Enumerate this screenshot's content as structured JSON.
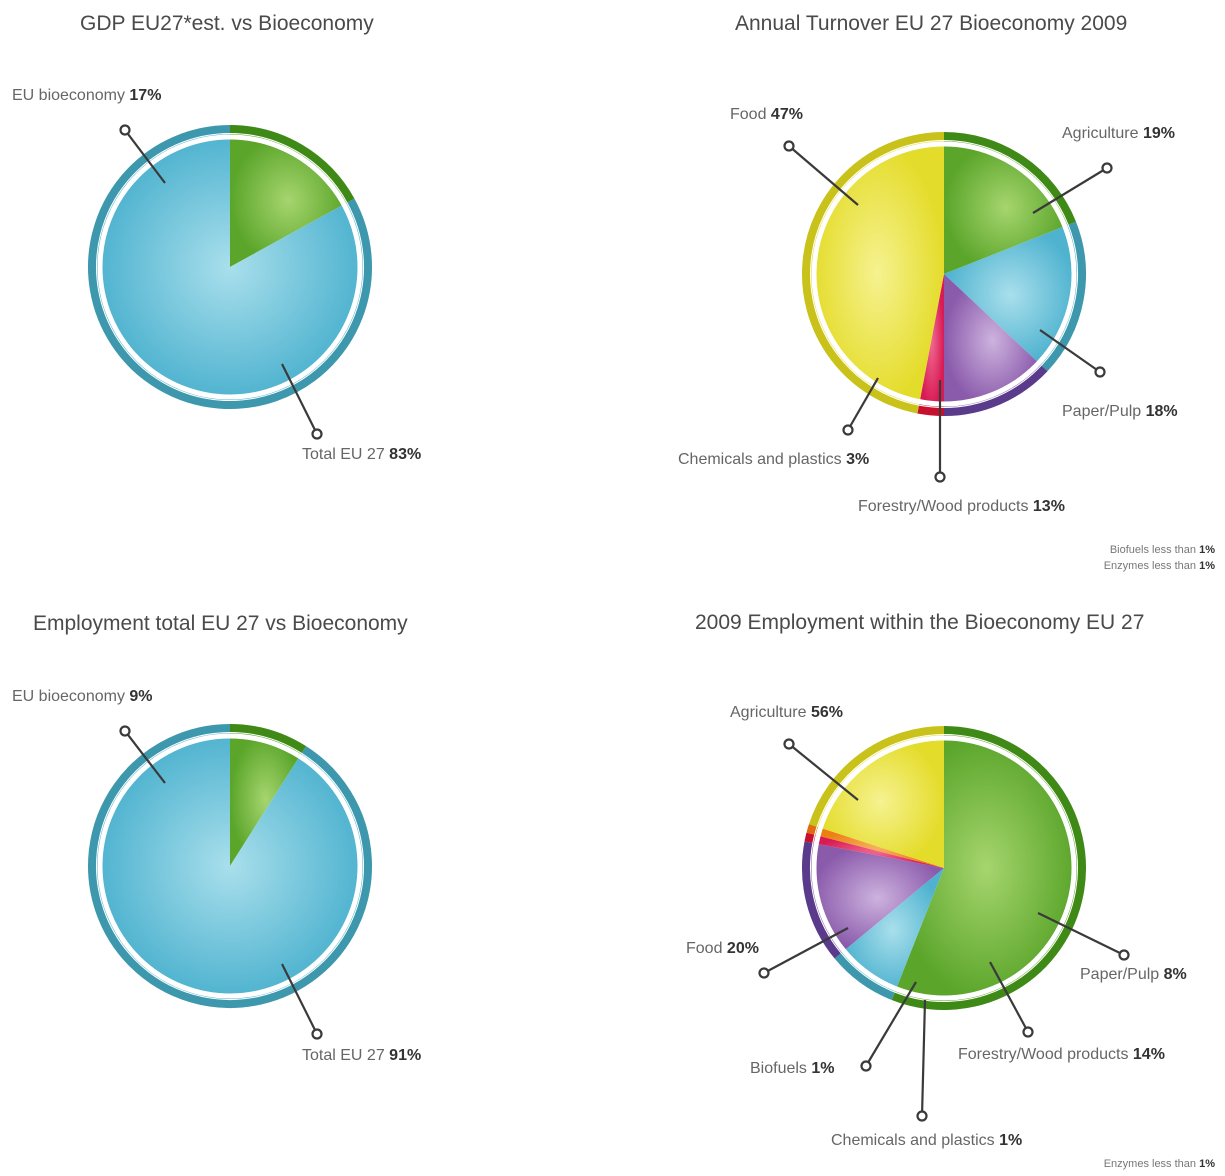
{
  "chart_data": [
    {
      "type": "pie",
      "title": "GDP EU27*est. vs Bioeconomy",
      "slices": [
        {
          "label": "EU bioeconomy",
          "value": 17,
          "value_label": "17%",
          "color": "#6fb53a"
        },
        {
          "label": "Total EU 27",
          "value": 83,
          "value_label": "83%",
          "color": "#6cc3da"
        }
      ]
    },
    {
      "type": "pie",
      "title": "Annual Turnover EU 27 Bioeconomy 2009",
      "slices": [
        {
          "label": "Agriculture",
          "value": 19,
          "value_label": "19%",
          "color": "#6fb53a"
        },
        {
          "label": "Paper/Pulp",
          "value": 18,
          "value_label": "18%",
          "color": "#7ccbe0"
        },
        {
          "label": "Forestry/Wood products",
          "value": 13,
          "value_label": "13%",
          "color": "#9b6bb8"
        },
        {
          "label": "Chemicals and plastics",
          "value": 3,
          "value_label": "3%",
          "color": "#e0245e"
        },
        {
          "label": "Food",
          "value": 47,
          "value_label": "47%",
          "color": "#ebe43a"
        }
      ],
      "notes": [
        {
          "text": "Biofuels less than",
          "value": "1%"
        },
        {
          "text": "Enzymes less than",
          "value": "1%"
        }
      ]
    },
    {
      "type": "pie",
      "title": "Employment total EU 27 vs Bioeconomy",
      "slices": [
        {
          "label": "EU bioeconomy",
          "value": 9,
          "value_label": "9%",
          "color": "#6fb53a"
        },
        {
          "label": "Total EU 27",
          "value": 91,
          "value_label": "91%",
          "color": "#6cc3da"
        }
      ]
    },
    {
      "type": "pie",
      "title": "2009 Employment within the Bioeconomy EU 27",
      "slices": [
        {
          "label": "Agriculture",
          "value": 56,
          "value_label": "56%",
          "color": "#6fb53a"
        },
        {
          "label": "Paper/Pulp",
          "value": 8,
          "value_label": "8%",
          "color": "#7ccbe0"
        },
        {
          "label": "Forestry/Wood products",
          "value": 14,
          "value_label": "14%",
          "color": "#9b6bb8"
        },
        {
          "label": "Chemicals and plastics",
          "value": 1,
          "value_label": "1%",
          "color": "#e0245e"
        },
        {
          "label": "Biofuels",
          "value": 1,
          "value_label": "1%",
          "color": "#f08a1c"
        },
        {
          "label": "Food",
          "value": 20,
          "value_label": "20%",
          "color": "#ebe43a"
        }
      ],
      "notes": [
        {
          "text": "Enzymes less than",
          "value": "1%"
        }
      ]
    }
  ],
  "ring_colors": {
    "green": "#3f8a16",
    "blue": "#3e98ad",
    "yellow": "#c9c21a",
    "purple": "#5a3a8a",
    "red": "#c8102e",
    "orange": "#e06a10"
  }
}
